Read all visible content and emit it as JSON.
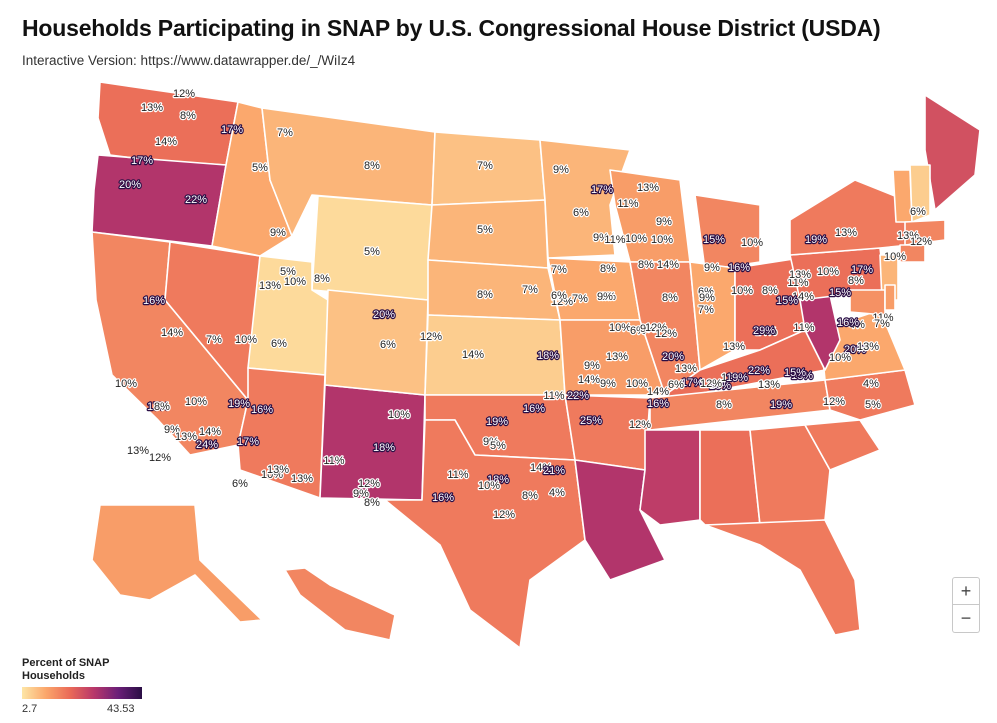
{
  "title": "Households Participating in SNAP by U.S. Congressional House District (USDA)",
  "subtitle": "Interactive Version: https://www.datawrapper.de/_/WiIz4",
  "legend": {
    "title": "Percent of SNAP Households",
    "min_label": "2.7",
    "max_label": "43.53",
    "min": 2.7,
    "max": 43.53,
    "colors": [
      "#fde6a6",
      "#fba66b",
      "#ea6a58",
      "#b8376a",
      "#6b1f78",
      "#2a0e45"
    ]
  },
  "zoom": {
    "in_label": "+",
    "out_label": "−"
  },
  "map_data": {
    "states": [
      {
        "n": "WA",
        "v": 14
      },
      {
        "n": "OR",
        "v": 20
      },
      {
        "n": "CA",
        "v": 12
      },
      {
        "n": "NV",
        "v": 13
      },
      {
        "n": "ID",
        "v": 9
      },
      {
        "n": "MT",
        "v": 8
      },
      {
        "n": "WY",
        "v": 5
      },
      {
        "n": "UT",
        "v": 5
      },
      {
        "n": "AZ",
        "v": 13
      },
      {
        "n": "NM",
        "v": 20
      },
      {
        "n": "CO",
        "v": 7
      },
      {
        "n": "ND",
        "v": 7
      },
      {
        "n": "SD",
        "v": 8
      },
      {
        "n": "NE",
        "v": 8
      },
      {
        "n": "KS",
        "v": 6
      },
      {
        "n": "OK",
        "v": 13
      },
      {
        "n": "TX",
        "v": 13
      },
      {
        "n": "MN",
        "v": 8
      },
      {
        "n": "IA",
        "v": 9
      },
      {
        "n": "MO",
        "v": 10
      },
      {
        "n": "AR",
        "v": 13
      },
      {
        "n": "LA",
        "v": 20
      },
      {
        "n": "WI",
        "v": 10
      },
      {
        "n": "IL",
        "v": 12
      },
      {
        "n": "MI",
        "v": 12
      },
      {
        "n": "IN",
        "v": 9
      },
      {
        "n": "OH",
        "v": 14
      },
      {
        "n": "KY",
        "v": 14
      },
      {
        "n": "TN",
        "v": 12
      },
      {
        "n": "MS",
        "v": 19
      },
      {
        "n": "AL",
        "v": 14
      },
      {
        "n": "GA",
        "v": 13
      },
      {
        "n": "FL",
        "v": 13
      },
      {
        "n": "SC",
        "v": 13
      },
      {
        "n": "NC",
        "v": 13
      },
      {
        "n": "VA",
        "v": 9
      },
      {
        "n": "WV",
        "v": 20
      },
      {
        "n": "PA",
        "v": 14
      },
      {
        "n": "NY",
        "v": 13
      },
      {
        "n": "ME",
        "v": 17
      },
      {
        "n": "VT",
        "v": 9
      },
      {
        "n": "NH",
        "v": 6
      },
      {
        "n": "MA",
        "v": 12
      },
      {
        "n": "CT",
        "v": 12
      },
      {
        "n": "NJ",
        "v": 8
      },
      {
        "n": "MD",
        "v": 11
      },
      {
        "n": "DE",
        "v": 10
      },
      {
        "n": "AK",
        "v": 10
      },
      {
        "n": "HI",
        "v": 12
      }
    ],
    "labels": [
      "13%",
      "12%",
      "8%",
      "17%",
      "14%",
      "17%",
      "20%",
      "22%",
      "7%",
      "5%",
      "8%",
      "7%",
      "9%",
      "13%",
      "17%",
      "9%",
      "5%",
      "5%",
      "5%",
      "8%",
      "8%",
      "7%",
      "12%",
      "11%",
      "6%",
      "9%",
      "10%",
      "9%",
      "11%",
      "10%",
      "15%",
      "10%",
      "19%",
      "13%",
      "6%",
      "13%",
      "10%",
      "12%",
      "9%",
      "16%",
      "6%",
      "14%",
      "7%",
      "7%",
      "6%",
      "8%",
      "8%",
      "9%",
      "7%",
      "9%",
      "8%",
      "9%",
      "10%",
      "8%",
      "11%",
      "8%",
      "13%",
      "10%",
      "17%",
      "15%",
      "14%",
      "15%",
      "14%",
      "4%",
      "11%",
      "29%",
      "11%",
      "16%",
      "7%",
      "13%",
      "10%",
      "6%",
      "10%",
      "7%",
      "14%",
      "16%",
      "20%",
      "6%",
      "12%",
      "14%",
      "18%",
      "9%",
      "13%",
      "20%",
      "10%",
      "6%",
      "9%",
      "12%",
      "12%",
      "13%",
      "13%",
      "22%",
      "18%",
      "20%",
      "13%",
      "16%",
      "10%",
      "12%",
      "17%",
      "19%",
      "15%",
      "13%",
      "12%",
      "10%",
      "9%",
      "12%",
      "14%",
      "11%",
      "6%",
      "14%",
      "16%",
      "22%",
      "9%",
      "5%",
      "19%",
      "16%",
      "25%",
      "8%",
      "19%",
      "12%",
      "4%",
      "5%",
      "10%",
      "10%",
      "19%",
      "14%",
      "17%",
      "13%",
      "8%",
      "9%",
      "13%",
      "24%",
      "12%",
      "16%",
      "17%",
      "6%",
      "10%",
      "13%",
      "13%",
      "18%",
      "10%",
      "11%",
      "9%",
      "12%",
      "8%",
      "16%",
      "11%",
      "18%",
      "14%",
      "21%",
      "4%",
      "8%",
      "10%",
      "12%"
    ]
  }
}
